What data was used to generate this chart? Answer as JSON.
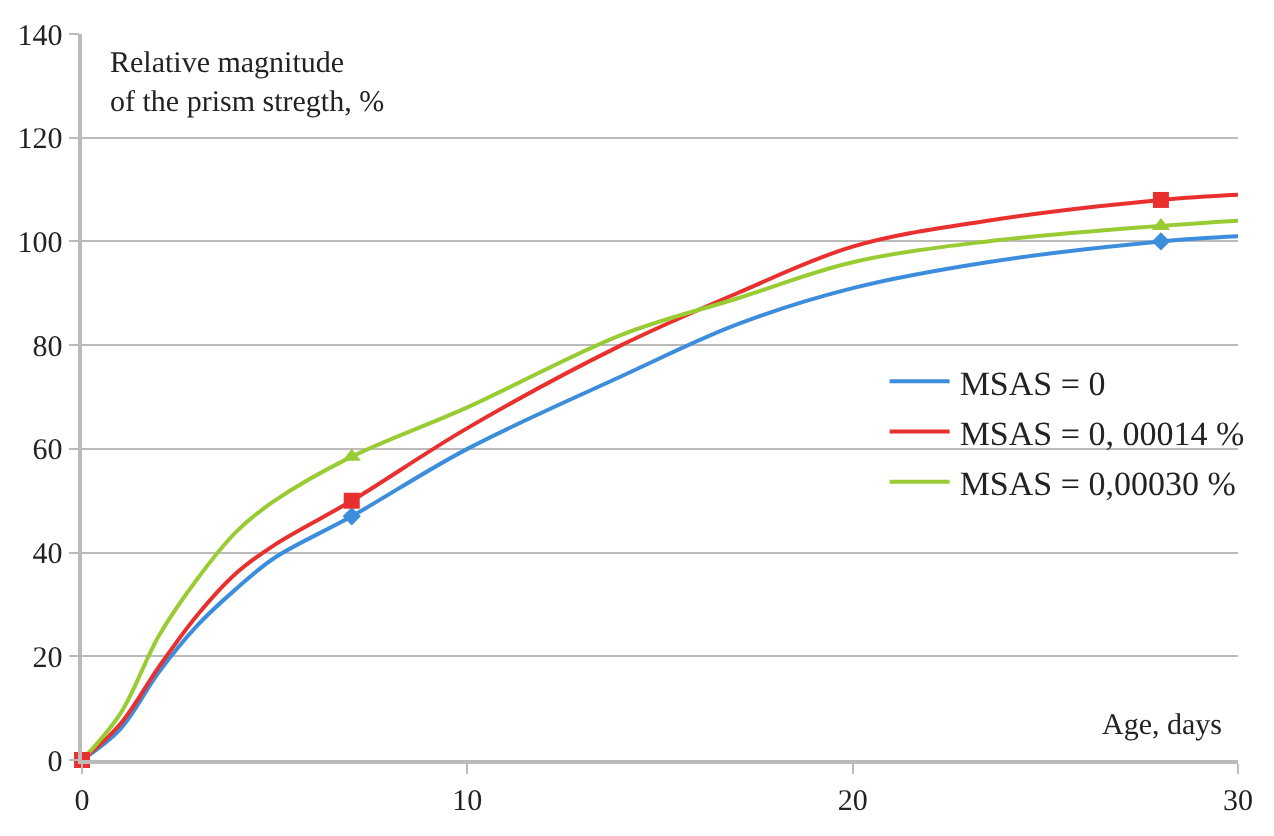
{
  "chart_data": {
    "type": "line",
    "xlabel": "Age, days",
    "ylabel": "Relative magnitude\nof the prism stregth, %",
    "xlim": [
      0,
      30
    ],
    "xticks": [
      0,
      10,
      20,
      30
    ],
    "ylim": [
      0,
      140
    ],
    "yticks": [
      0,
      20,
      40,
      60,
      80,
      100,
      120,
      140
    ],
    "grid": "y",
    "legend": "right",
    "line_style": "solid",
    "series": [
      {
        "name": "MSAS = 0",
        "color": "#3c8ddc",
        "marker": "none",
        "x": [
          0,
          1,
          2,
          3,
          4,
          5,
          7,
          10,
          14,
          17,
          20,
          23.5,
          28,
          30
        ],
        "values": [
          0,
          6,
          17,
          26,
          33,
          39,
          47,
          60,
          74,
          84,
          91,
          96,
          100,
          101
        ]
      },
      {
        "name": "MSAS = 0, 00014 %",
        "color": "#e8312f",
        "marker": "none",
        "x": [
          0,
          1,
          2,
          3,
          4,
          5,
          7,
          10,
          14,
          17,
          20,
          23.5,
          28,
          30
        ],
        "values": [
          0,
          7,
          18,
          28,
          36,
          41.5,
          50,
          64,
          80,
          90,
          99,
          104,
          108,
          109
        ]
      },
      {
        "name": "MSAS = 0,00030 %",
        "color": "#99cc33",
        "marker": "none",
        "x": [
          0,
          1,
          2,
          3,
          4,
          5,
          7,
          10,
          14,
          17,
          20,
          23.5,
          28,
          30
        ],
        "values": [
          0,
          9,
          24,
          35,
          44,
          50,
          58.5,
          68,
          82,
          89,
          96,
          100,
          103,
          104
        ]
      },
      {
        "color": "#3c8ddc",
        "type": "scatter",
        "marker": "diamond",
        "x": [
          7,
          28
        ],
        "values": [
          47,
          100
        ]
      },
      {
        "color": "#e8312f",
        "type": "scatter",
        "marker": "square",
        "x": [
          0,
          7,
          28
        ],
        "values": [
          0,
          50,
          108
        ]
      },
      {
        "color": "#99cc33",
        "type": "scatter",
        "marker": "triangle",
        "x": [
          7,
          28
        ],
        "values": [
          58.5,
          103
        ]
      }
    ]
  }
}
